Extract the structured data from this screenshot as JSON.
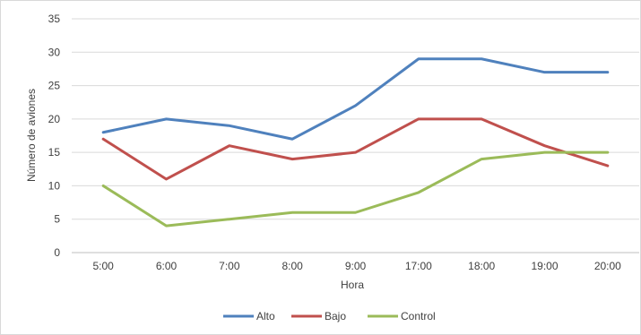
{
  "chart_data": {
    "type": "line",
    "title": "",
    "xlabel": "Hora",
    "ylabel": "Número de aviones",
    "categories": [
      "5:00",
      "6:00",
      "7:00",
      "8:00",
      "9:00",
      "17:00",
      "18:00",
      "19:00",
      "20:00"
    ],
    "ylim": [
      0,
      35
    ],
    "yticks": [
      0,
      5,
      10,
      15,
      20,
      25,
      30,
      35
    ],
    "grid": true,
    "legend_position": "bottom",
    "series": [
      {
        "name": "Alto",
        "color": "#4f81bd",
        "values": [
          18,
          20,
          19,
          17,
          22,
          29,
          29,
          27,
          27
        ]
      },
      {
        "name": "Bajo",
        "color": "#c0504d",
        "values": [
          17,
          11,
          16,
          14,
          15,
          20,
          20,
          16,
          13
        ]
      },
      {
        "name": "Control",
        "color": "#9bbb59",
        "values": [
          10,
          4,
          5,
          6,
          6,
          9,
          14,
          15,
          15
        ]
      }
    ]
  }
}
